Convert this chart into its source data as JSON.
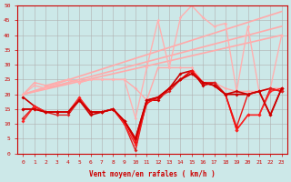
{
  "background_color": "#cce8e8",
  "grid_color": "#b0b0b0",
  "xlabel": "Vent moyen/en rafales ( km/h )",
  "xlim": [
    -0.5,
    23.5
  ],
  "ylim": [
    0,
    50
  ],
  "yticks": [
    0,
    5,
    10,
    15,
    20,
    25,
    30,
    35,
    40,
    45,
    50
  ],
  "xticks": [
    0,
    1,
    2,
    3,
    4,
    5,
    6,
    7,
    8,
    9,
    10,
    11,
    12,
    13,
    14,
    15,
    16,
    17,
    18,
    19,
    20,
    21,
    22,
    23
  ],
  "series": [
    {
      "x": [
        0,
        1,
        2,
        3,
        4,
        5,
        6,
        7,
        8,
        9,
        10,
        11,
        12,
        13,
        14,
        15,
        16,
        17,
        18,
        19,
        20,
        21,
        22,
        23
      ],
      "y": [
        20,
        24,
        23,
        24,
        25,
        24,
        25,
        25,
        25,
        25,
        22,
        18,
        29,
        29,
        29,
        29,
        24,
        24,
        22,
        21,
        21,
        21,
        22,
        22
      ],
      "color": "#ffaaaa",
      "linewidth": 1.0,
      "marker": "D",
      "markersize": 1.8,
      "zorder": 2
    },
    {
      "x": [
        0,
        1,
        2,
        3,
        4,
        5,
        6,
        7,
        8,
        9,
        10,
        11,
        12,
        13,
        14,
        15,
        16,
        17,
        18,
        19,
        20,
        21,
        22,
        23
      ],
      "y": [
        20,
        23,
        22,
        24,
        25,
        24,
        25,
        25,
        25,
        25,
        12,
        29,
        45,
        29,
        46,
        50,
        46,
        43,
        44,
        21,
        43,
        21,
        22,
        40
      ],
      "color": "#ffb0b0",
      "linewidth": 1.0,
      "marker": "D",
      "markersize": 1.8,
      "zorder": 2
    },
    {
      "x": [
        0,
        23
      ],
      "y": [
        20,
        40
      ],
      "color": "#ffaaaa",
      "linewidth": 1.2,
      "marker": null,
      "markersize": 0,
      "zorder": 1
    },
    {
      "x": [
        0,
        23
      ],
      "y": [
        20,
        43
      ],
      "color": "#ffaaaa",
      "linewidth": 1.2,
      "marker": null,
      "markersize": 0,
      "zorder": 1
    },
    {
      "x": [
        0,
        23
      ],
      "y": [
        20,
        48
      ],
      "color": "#ffaaaa",
      "linewidth": 1.2,
      "marker": null,
      "markersize": 0,
      "zorder": 1
    },
    {
      "x": [
        0,
        1,
        2,
        3,
        4,
        5,
        6,
        7,
        8,
        9,
        10,
        11,
        12,
        13,
        14,
        15,
        16,
        17,
        18,
        19,
        20,
        21,
        22,
        23
      ],
      "y": [
        19,
        16,
        14,
        14,
        14,
        18,
        13,
        14,
        15,
        11,
        5,
        18,
        18,
        22,
        27,
        28,
        23,
        24,
        20,
        21,
        20,
        21,
        22,
        21
      ],
      "color": "#cc0000",
      "linewidth": 1.2,
      "marker": "D",
      "markersize": 2.0,
      "zorder": 4
    },
    {
      "x": [
        0,
        1,
        2,
        3,
        4,
        5,
        6,
        7,
        8,
        9,
        10,
        11,
        12,
        13,
        14,
        15,
        16,
        17,
        18,
        19,
        20,
        21,
        22,
        23
      ],
      "y": [
        12,
        16,
        14,
        13,
        13,
        18,
        14,
        14,
        15,
        10,
        1,
        18,
        19,
        21,
        25,
        28,
        24,
        24,
        20,
        8,
        13,
        13,
        22,
        21
      ],
      "color": "#dd2222",
      "linewidth": 1.0,
      "marker": "D",
      "markersize": 2.0,
      "zorder": 4
    },
    {
      "x": [
        0,
        1,
        2,
        3,
        4,
        5,
        6,
        7,
        8,
        9,
        10,
        11,
        12,
        13,
        14,
        15,
        16,
        17,
        18,
        19,
        20,
        21,
        22,
        23
      ],
      "y": [
        11,
        16,
        14,
        14,
        14,
        19,
        14,
        14,
        15,
        10,
        3,
        17,
        19,
        22,
        25,
        28,
        24,
        23,
        20,
        8,
        13,
        13,
        21,
        22
      ],
      "color": "#ff2222",
      "linewidth": 1.0,
      "marker": "D",
      "markersize": 2.0,
      "zorder": 4
    },
    {
      "x": [
        0,
        1,
        2,
        3,
        4,
        5,
        6,
        7,
        8,
        9,
        10,
        11,
        12,
        13,
        14,
        15,
        16,
        17,
        18,
        19,
        20,
        21,
        22,
        23
      ],
      "y": [
        15,
        15,
        14,
        14,
        14,
        18,
        14,
        14,
        15,
        11,
        4,
        17,
        19,
        22,
        25,
        28,
        24,
        23,
        20,
        9,
        20,
        21,
        13,
        22
      ],
      "color": "#ee1111",
      "linewidth": 1.0,
      "marker": "D",
      "markersize": 2.0,
      "zorder": 4
    },
    {
      "x": [
        0,
        1,
        2,
        3,
        4,
        5,
        6,
        7,
        8,
        9,
        10,
        11,
        12,
        13,
        14,
        15,
        16,
        17,
        18,
        19,
        20,
        21,
        22,
        23
      ],
      "y": [
        15,
        15,
        14,
        14,
        14,
        18,
        14,
        14,
        15,
        11,
        5,
        18,
        19,
        22,
        25,
        27,
        24,
        23,
        20,
        20,
        20,
        21,
        13,
        22
      ],
      "color": "#cc0000",
      "linewidth": 1.3,
      "marker": "D",
      "markersize": 2.0,
      "zorder": 5
    }
  ]
}
